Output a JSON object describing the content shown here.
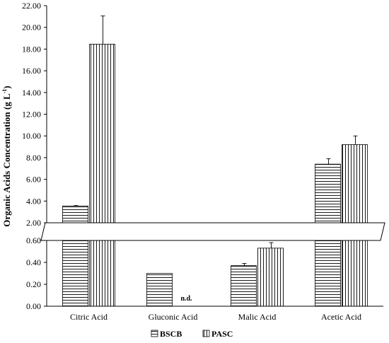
{
  "chart_data": {
    "type": "bar",
    "ylabel": "Organic Acids Concentration (g L",
    "ylabel_sup": "-1",
    "ylabel_close": ")",
    "categories": [
      "Citric Acid",
      "Gluconic Acid",
      "Malic Acid",
      "Acetic Acid"
    ],
    "series": [
      {
        "name": "BSCB",
        "pattern": "horizontal-lines",
        "values": [
          3.55,
          0.3,
          0.37,
          7.4
        ],
        "errors": [
          0.05,
          0.0,
          0.02,
          0.5
        ]
      },
      {
        "name": "PASC",
        "pattern": "vertical-lines",
        "values": [
          18.45,
          null,
          0.53,
          9.2
        ],
        "errors": [
          2.6,
          null,
          0.05,
          0.8
        ]
      }
    ],
    "annotations": [
      {
        "category": "Gluconic Acid",
        "series": "PASC",
        "text": "n.d."
      }
    ],
    "y_axis_break": true,
    "y_lower_range": [
      0,
      0.6
    ],
    "y_lower_ticks": [
      "0.00",
      "0.20",
      "0.40",
      "0.60"
    ],
    "y_upper_range": [
      2,
      22
    ],
    "y_upper_ticks": [
      "2.00",
      "4.00",
      "6.00",
      "8.00",
      "10.00",
      "12.00",
      "14.00",
      "16.00",
      "18.00",
      "20.00",
      "22.00"
    ],
    "legend_position": "bottom",
    "grid": false
  }
}
